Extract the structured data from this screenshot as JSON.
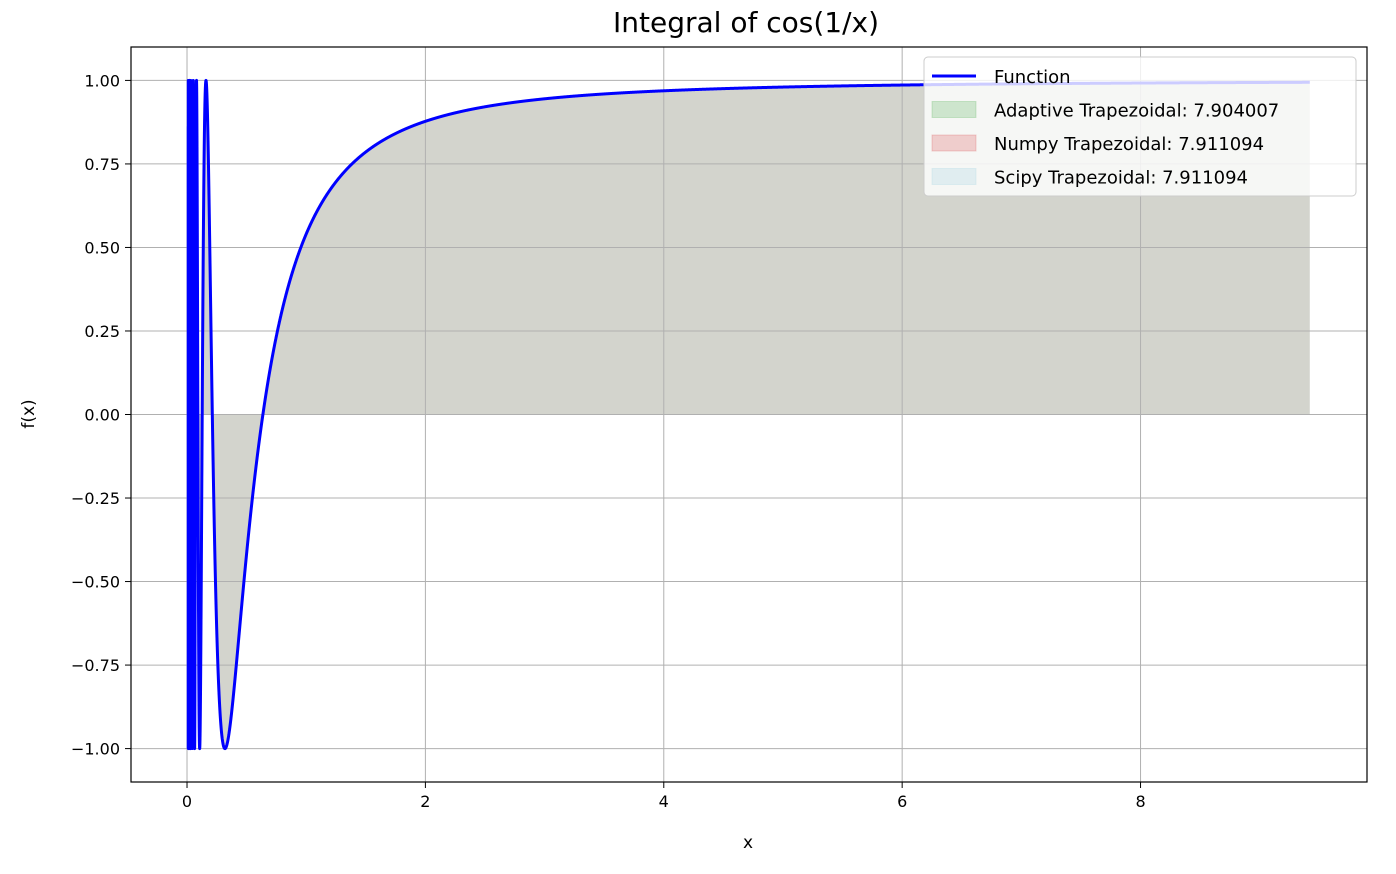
{
  "chart_data": {
    "type": "line",
    "title": "Integral of cos(1/x)",
    "xlabel": "x",
    "ylabel": "f(x)",
    "xlim": [
      -0.47,
      9.9
    ],
    "ylim": [
      -1.1,
      1.1
    ],
    "x_ticks": [
      0,
      2,
      4,
      6,
      8
    ],
    "x_tick_labels": [
      "0",
      "2",
      "4",
      "6",
      "8"
    ],
    "y_ticks": [
      1.0,
      0.75,
      0.5,
      0.25,
      0.0,
      -0.25,
      -0.5,
      -0.75,
      -1.0
    ],
    "y_tick_labels": [
      "1.00",
      "0.75",
      "0.50",
      "0.25",
      "0.00",
      "−0.25",
      "−0.50",
      "−0.75",
      "−1.00"
    ],
    "grid": true,
    "legend_position": "top-right",
    "x_range": [
      0.01,
      9.42
    ],
    "function": "cos(1/x)",
    "series": [
      {
        "name": "Function",
        "kind": "line",
        "color": "#0000ff"
      },
      {
        "name": "Adaptive Trapezoidal: 7.904007",
        "kind": "fill",
        "color": "#2ca02c",
        "alpha": 0.2
      },
      {
        "name": "Numpy Trapezoidal: 7.911094",
        "kind": "fill",
        "color": "#d62728",
        "alpha": 0.2
      },
      {
        "name": "Scipy Trapezoidal: 7.911094",
        "kind": "fill",
        "color": "#add8e6",
        "alpha": 0.3
      }
    ],
    "fill_color_composite": "#d3d4cd"
  }
}
